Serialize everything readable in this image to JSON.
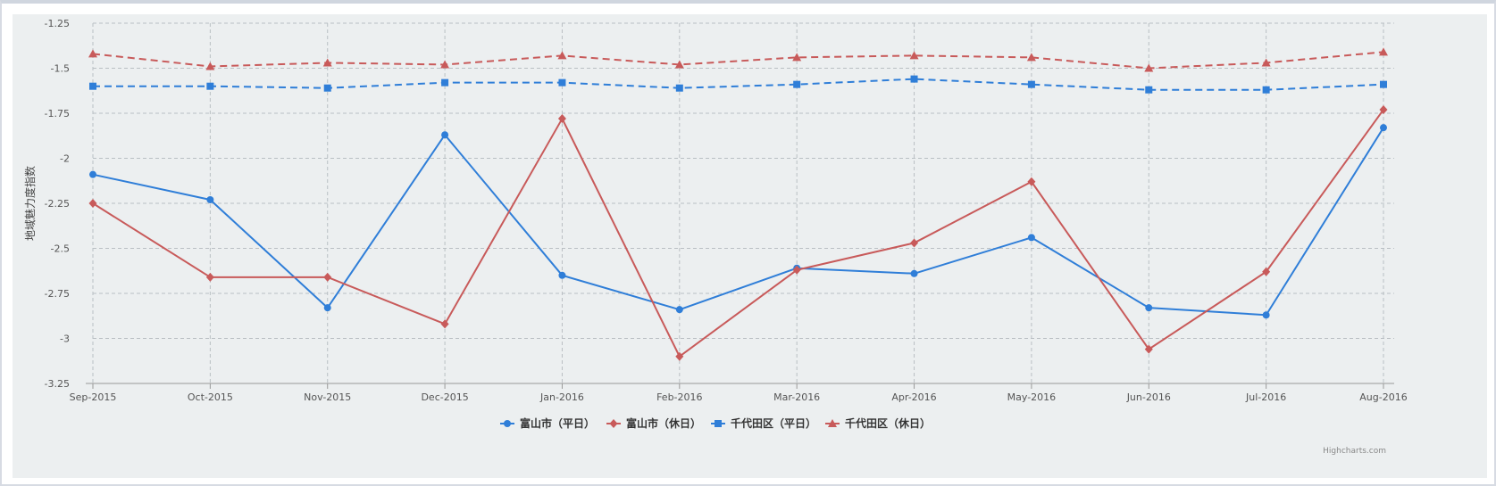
{
  "chart_data": {
    "type": "line",
    "categories": [
      "Sep-2015",
      "Oct-2015",
      "Nov-2015",
      "Dec-2015",
      "Jan-2016",
      "Feb-2016",
      "Mar-2016",
      "Apr-2016",
      "May-2016",
      "Jun-2016",
      "Jul-2016",
      "Aug-2016"
    ],
    "ylabel": "地域魅力度指数",
    "ylim": [
      -3.25,
      -1.25
    ],
    "yticks": [
      -1.25,
      -1.5,
      -1.75,
      -2,
      -2.25,
      -2.5,
      -2.75,
      -3,
      -3.25
    ],
    "ytick_labels": [
      "-1.25",
      "-1.5",
      "-1.75",
      "-2",
      "-2.25",
      "-2.5",
      "-2.75",
      "-3",
      "-3.25"
    ],
    "grid": true,
    "legend_placement": "bottom-center",
    "series": [
      {
        "name": "富山市（平日）",
        "color": "#2f7ed8",
        "marker": "circle",
        "dash": "solid",
        "values": [
          -2.09,
          -2.23,
          -2.83,
          -1.87,
          -2.65,
          -2.84,
          -2.61,
          -2.64,
          -2.44,
          -2.83,
          -2.87,
          -1.83
        ]
      },
      {
        "name": "富山市（休日）",
        "color": "#c85a5a",
        "marker": "diamond",
        "dash": "solid",
        "values": [
          -2.25,
          -2.66,
          -2.66,
          -2.92,
          -1.78,
          -3.1,
          -2.62,
          -2.47,
          -2.13,
          -3.06,
          -2.63,
          -1.73
        ]
      },
      {
        "name": "千代田区（平日）",
        "color": "#2f7ed8",
        "marker": "square",
        "dash": "dash",
        "values": [
          -1.6,
          -1.6,
          -1.61,
          -1.58,
          -1.58,
          -1.61,
          -1.59,
          -1.56,
          -1.59,
          -1.62,
          -1.62,
          -1.59
        ]
      },
      {
        "name": "千代田区（休日）",
        "color": "#c85a5a",
        "marker": "triangle",
        "dash": "dash",
        "values": [
          -1.42,
          -1.49,
          -1.47,
          -1.48,
          -1.43,
          -1.48,
          -1.44,
          -1.43,
          -1.44,
          -1.5,
          -1.47,
          -1.41
        ]
      }
    ]
  },
  "credits": "Highcharts.com"
}
